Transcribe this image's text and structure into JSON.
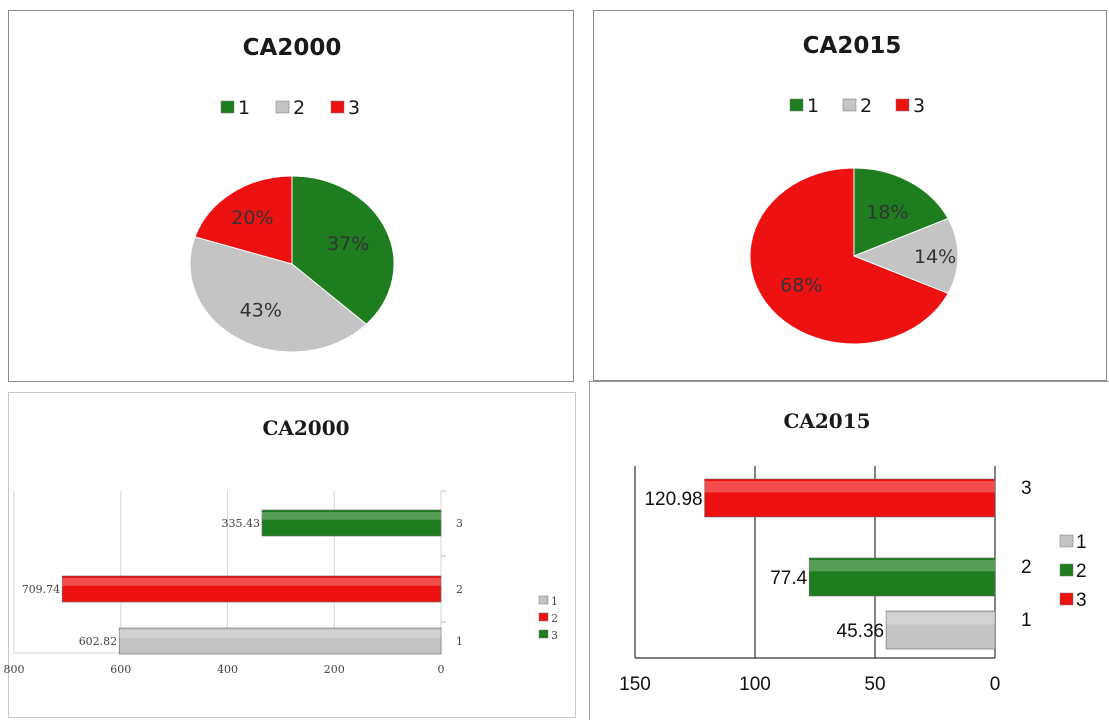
{
  "colors": {
    "green": "#1e7d1e",
    "grey": "#c4c4c4",
    "red": "#ee1111"
  },
  "chart_data": [
    {
      "type": "pie",
      "title": "CA2000",
      "legend": [
        "1",
        "2",
        "3"
      ],
      "labels": [
        "37%",
        "43%",
        "20%"
      ],
      "values": [
        37,
        43,
        20
      ],
      "colors": [
        "#1e7d1e",
        "#c4c4c4",
        "#ee1111"
      ],
      "legend_position": "top"
    },
    {
      "type": "pie",
      "title": "CA2015",
      "legend": [
        "1",
        "2",
        "3"
      ],
      "labels": [
        "18%",
        "14%",
        "68%"
      ],
      "values": [
        18,
        14,
        68
      ],
      "colors": [
        "#1e7d1e",
        "#c4c4c4",
        "#ee1111"
      ],
      "legend_position": "top"
    },
    {
      "type": "bar",
      "orientation": "horizontal",
      "title": "CA2000",
      "categories": [
        "3",
        "2",
        "1"
      ],
      "values": [
        335.43,
        709.74,
        602.82
      ],
      "value_labels": [
        "335.43",
        "709.74",
        "602.82"
      ],
      "colors": [
        "#1e7d1e",
        "#ee1111",
        "#c4c4c4"
      ],
      "xlim": [
        800,
        0
      ],
      "xticks": [
        "800",
        "600",
        "400",
        "200",
        "0"
      ],
      "legend": [
        "1",
        "2",
        "3"
      ],
      "legend_colors": [
        "#c4c4c4",
        "#ee1111",
        "#1e7d1e"
      ],
      "legend_position": "right",
      "grid": true
    },
    {
      "type": "bar",
      "orientation": "horizontal",
      "title": "CA2015",
      "categories": [
        "3",
        "2",
        "1"
      ],
      "values": [
        120.98,
        77.4,
        45.36
      ],
      "value_labels": [
        "120.98",
        "77.4",
        "45.36"
      ],
      "colors": [
        "#ee1111",
        "#1e7d1e",
        "#c4c4c4"
      ],
      "xlim": [
        150,
        0
      ],
      "xticks": [
        "150",
        "100",
        "50",
        "0"
      ],
      "legend": [
        "1",
        "2",
        "3"
      ],
      "legend_colors": [
        "#c4c4c4",
        "#1e7d1e",
        "#ee1111"
      ],
      "legend_position": "right",
      "grid": true
    }
  ]
}
